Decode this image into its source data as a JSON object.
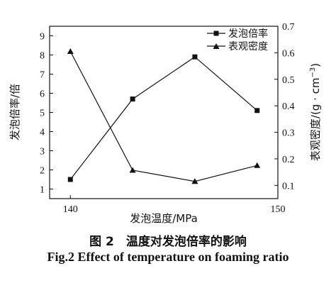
{
  "chart_data": {
    "type": "line",
    "x_title": "发泡温度/MPa",
    "y_left_title": "发泡倍率/倍",
    "y_right_title": "表观密度/(g · cm",
    "y_right_title_sup": "−3",
    "y_right_title_end": ")",
    "xlim": [
      139,
      150
    ],
    "x_ticks": [
      140,
      150
    ],
    "y_left_lim": [
      0.5,
      9.5
    ],
    "y_left_ticks": [
      1,
      2,
      3,
      4,
      5,
      6,
      7,
      8,
      9
    ],
    "y_right_lim": [
      0.05,
      0.7
    ],
    "y_right_ticks": [
      "0.1",
      "0.2",
      "0.3",
      "0.4",
      "0.5",
      "0.6",
      "0.7"
    ],
    "series": [
      {
        "name": "发泡倍率",
        "axis": "left",
        "marker": "square",
        "x": [
          140,
          143,
          146,
          149
        ],
        "y": [
          1.5,
          5.7,
          7.9,
          5.1
        ]
      },
      {
        "name": "表观密度",
        "axis": "right",
        "marker": "triangle",
        "x": [
          140,
          143,
          146,
          149
        ],
        "y": [
          0.605,
          0.157,
          0.115,
          0.175
        ]
      }
    ],
    "legend_position": "top-right",
    "caption_cn": "图 2　温度对发泡倍率的影响",
    "caption_en": "Fig.2 Effect of temperature on foaming ratio"
  }
}
